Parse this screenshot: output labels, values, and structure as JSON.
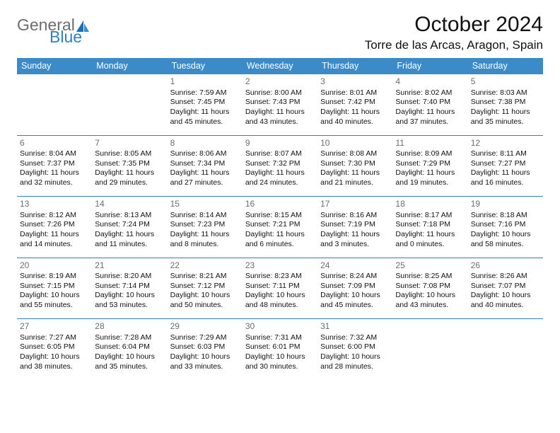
{
  "brand": {
    "part1": "General",
    "part2": "Blue"
  },
  "title": "October 2024",
  "location": "Torre de las Arcas, Aragon, Spain",
  "header_bg": "#3b8bc8",
  "header_fg": "#ffffff",
  "sep_color": "#2f7fc2",
  "logo_gray": "#6d6d6d",
  "logo_blue": "#2f7fc2",
  "days": [
    "Sunday",
    "Monday",
    "Tuesday",
    "Wednesday",
    "Thursday",
    "Friday",
    "Saturday"
  ],
  "weeks": [
    [
      null,
      null,
      {
        "n": "1",
        "sr": "Sunrise: 7:59 AM",
        "ss": "Sunset: 7:45 PM",
        "d1": "Daylight: 11 hours",
        "d2": "and 45 minutes."
      },
      {
        "n": "2",
        "sr": "Sunrise: 8:00 AM",
        "ss": "Sunset: 7:43 PM",
        "d1": "Daylight: 11 hours",
        "d2": "and 43 minutes."
      },
      {
        "n": "3",
        "sr": "Sunrise: 8:01 AM",
        "ss": "Sunset: 7:42 PM",
        "d1": "Daylight: 11 hours",
        "d2": "and 40 minutes."
      },
      {
        "n": "4",
        "sr": "Sunrise: 8:02 AM",
        "ss": "Sunset: 7:40 PM",
        "d1": "Daylight: 11 hours",
        "d2": "and 37 minutes."
      },
      {
        "n": "5",
        "sr": "Sunrise: 8:03 AM",
        "ss": "Sunset: 7:38 PM",
        "d1": "Daylight: 11 hours",
        "d2": "and 35 minutes."
      }
    ],
    [
      {
        "n": "6",
        "sr": "Sunrise: 8:04 AM",
        "ss": "Sunset: 7:37 PM",
        "d1": "Daylight: 11 hours",
        "d2": "and 32 minutes."
      },
      {
        "n": "7",
        "sr": "Sunrise: 8:05 AM",
        "ss": "Sunset: 7:35 PM",
        "d1": "Daylight: 11 hours",
        "d2": "and 29 minutes."
      },
      {
        "n": "8",
        "sr": "Sunrise: 8:06 AM",
        "ss": "Sunset: 7:34 PM",
        "d1": "Daylight: 11 hours",
        "d2": "and 27 minutes."
      },
      {
        "n": "9",
        "sr": "Sunrise: 8:07 AM",
        "ss": "Sunset: 7:32 PM",
        "d1": "Daylight: 11 hours",
        "d2": "and 24 minutes."
      },
      {
        "n": "10",
        "sr": "Sunrise: 8:08 AM",
        "ss": "Sunset: 7:30 PM",
        "d1": "Daylight: 11 hours",
        "d2": "and 21 minutes."
      },
      {
        "n": "11",
        "sr": "Sunrise: 8:09 AM",
        "ss": "Sunset: 7:29 PM",
        "d1": "Daylight: 11 hours",
        "d2": "and 19 minutes."
      },
      {
        "n": "12",
        "sr": "Sunrise: 8:11 AM",
        "ss": "Sunset: 7:27 PM",
        "d1": "Daylight: 11 hours",
        "d2": "and 16 minutes."
      }
    ],
    [
      {
        "n": "13",
        "sr": "Sunrise: 8:12 AM",
        "ss": "Sunset: 7:26 PM",
        "d1": "Daylight: 11 hours",
        "d2": "and 14 minutes."
      },
      {
        "n": "14",
        "sr": "Sunrise: 8:13 AM",
        "ss": "Sunset: 7:24 PM",
        "d1": "Daylight: 11 hours",
        "d2": "and 11 minutes."
      },
      {
        "n": "15",
        "sr": "Sunrise: 8:14 AM",
        "ss": "Sunset: 7:23 PM",
        "d1": "Daylight: 11 hours",
        "d2": "and 8 minutes."
      },
      {
        "n": "16",
        "sr": "Sunrise: 8:15 AM",
        "ss": "Sunset: 7:21 PM",
        "d1": "Daylight: 11 hours",
        "d2": "and 6 minutes."
      },
      {
        "n": "17",
        "sr": "Sunrise: 8:16 AM",
        "ss": "Sunset: 7:19 PM",
        "d1": "Daylight: 11 hours",
        "d2": "and 3 minutes."
      },
      {
        "n": "18",
        "sr": "Sunrise: 8:17 AM",
        "ss": "Sunset: 7:18 PM",
        "d1": "Daylight: 11 hours",
        "d2": "and 0 minutes."
      },
      {
        "n": "19",
        "sr": "Sunrise: 8:18 AM",
        "ss": "Sunset: 7:16 PM",
        "d1": "Daylight: 10 hours",
        "d2": "and 58 minutes."
      }
    ],
    [
      {
        "n": "20",
        "sr": "Sunrise: 8:19 AM",
        "ss": "Sunset: 7:15 PM",
        "d1": "Daylight: 10 hours",
        "d2": "and 55 minutes."
      },
      {
        "n": "21",
        "sr": "Sunrise: 8:20 AM",
        "ss": "Sunset: 7:14 PM",
        "d1": "Daylight: 10 hours",
        "d2": "and 53 minutes."
      },
      {
        "n": "22",
        "sr": "Sunrise: 8:21 AM",
        "ss": "Sunset: 7:12 PM",
        "d1": "Daylight: 10 hours",
        "d2": "and 50 minutes."
      },
      {
        "n": "23",
        "sr": "Sunrise: 8:23 AM",
        "ss": "Sunset: 7:11 PM",
        "d1": "Daylight: 10 hours",
        "d2": "and 48 minutes."
      },
      {
        "n": "24",
        "sr": "Sunrise: 8:24 AM",
        "ss": "Sunset: 7:09 PM",
        "d1": "Daylight: 10 hours",
        "d2": "and 45 minutes."
      },
      {
        "n": "25",
        "sr": "Sunrise: 8:25 AM",
        "ss": "Sunset: 7:08 PM",
        "d1": "Daylight: 10 hours",
        "d2": "and 43 minutes."
      },
      {
        "n": "26",
        "sr": "Sunrise: 8:26 AM",
        "ss": "Sunset: 7:07 PM",
        "d1": "Daylight: 10 hours",
        "d2": "and 40 minutes."
      }
    ],
    [
      {
        "n": "27",
        "sr": "Sunrise: 7:27 AM",
        "ss": "Sunset: 6:05 PM",
        "d1": "Daylight: 10 hours",
        "d2": "and 38 minutes."
      },
      {
        "n": "28",
        "sr": "Sunrise: 7:28 AM",
        "ss": "Sunset: 6:04 PM",
        "d1": "Daylight: 10 hours",
        "d2": "and 35 minutes."
      },
      {
        "n": "29",
        "sr": "Sunrise: 7:29 AM",
        "ss": "Sunset: 6:03 PM",
        "d1": "Daylight: 10 hours",
        "d2": "and 33 minutes."
      },
      {
        "n": "30",
        "sr": "Sunrise: 7:31 AM",
        "ss": "Sunset: 6:01 PM",
        "d1": "Daylight: 10 hours",
        "d2": "and 30 minutes."
      },
      {
        "n": "31",
        "sr": "Sunrise: 7:32 AM",
        "ss": "Sunset: 6:00 PM",
        "d1": "Daylight: 10 hours",
        "d2": "and 28 minutes."
      },
      null,
      null
    ]
  ]
}
